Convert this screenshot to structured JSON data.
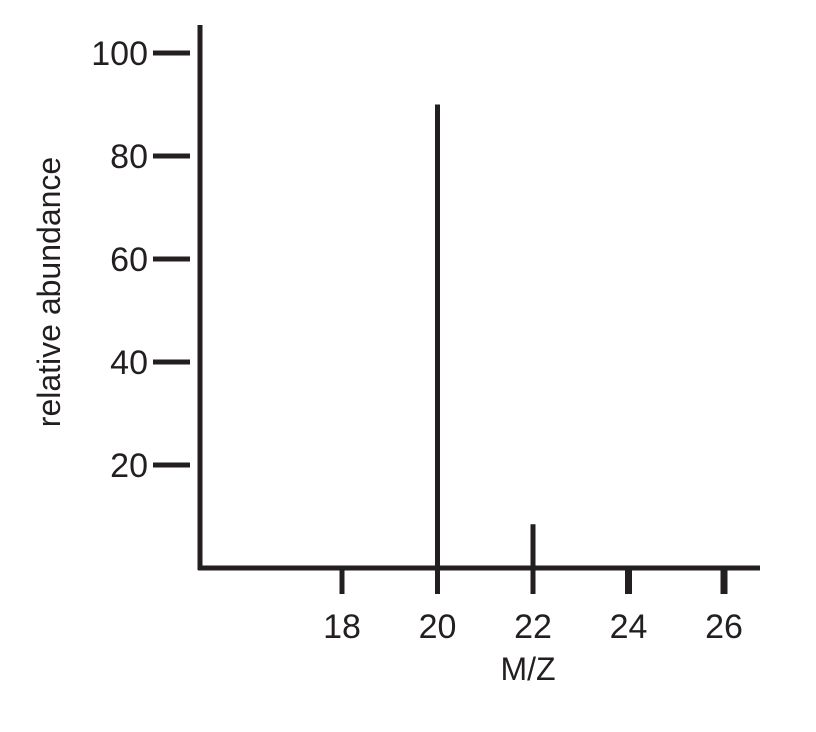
{
  "chart_data": {
    "type": "bar",
    "title": "",
    "xlabel": "M/Z",
    "ylabel": "relative abundance",
    "x_ticks": [
      18,
      20,
      22,
      24,
      26
    ],
    "y_ticks": [
      20,
      40,
      60,
      80,
      100
    ],
    "xlim": [
      15,
      26.8
    ],
    "ylim": [
      0,
      105
    ],
    "grid": false,
    "legend": "none",
    "series": [
      {
        "x": [
          20,
          22
        ],
        "values": [
          90,
          8.5
        ]
      }
    ],
    "colors": {
      "ink": "#231f20",
      "background": "#ffffff"
    }
  }
}
